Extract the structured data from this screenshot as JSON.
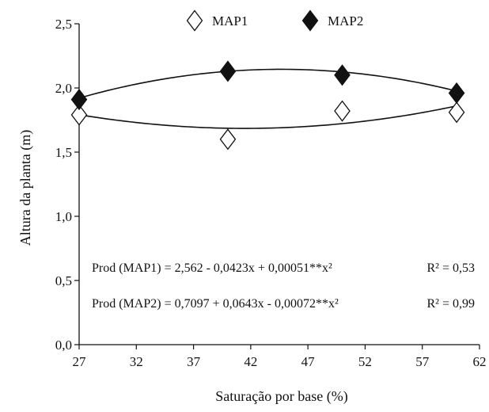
{
  "chart_data": {
    "type": "scatter",
    "xlabel": "Saturação por base (%)",
    "ylabel": "Altura da planta (m)",
    "xlim": [
      27,
      62
    ],
    "ylim": [
      0,
      2.5
    ],
    "x_ticks": [
      27,
      32,
      37,
      42,
      47,
      52,
      57,
      62
    ],
    "x_tick_labels": [
      "27",
      "32",
      "37",
      "42",
      "47",
      "52",
      "57",
      "62"
    ],
    "y_ticks": [
      0,
      0.5,
      1.0,
      1.5,
      2.0,
      2.5
    ],
    "y_tick_labels": [
      "0,0",
      "0,5",
      "1,0",
      "1,5",
      "2,0",
      "2,5"
    ],
    "grid": false,
    "legend_position": "top-center",
    "series": [
      {
        "name": "MAP1",
        "marker": "diamond-open",
        "color": "#111111",
        "x": [
          27,
          40,
          50,
          60
        ],
        "y": [
          1.79,
          1.6,
          1.82,
          1.81
        ],
        "fit": {
          "a": 2.562,
          "b": -0.0423,
          "c": 0.00051
        },
        "equation": "Prod (MAP1) = 2,562 - 0,0423x + 0,00051**x²",
        "r2": "R² = 0,53"
      },
      {
        "name": "MAP2",
        "marker": "diamond-filled",
        "color": "#111111",
        "x": [
          27,
          40,
          50,
          60
        ],
        "y": [
          1.91,
          2.13,
          2.1,
          1.96
        ],
        "fit": {
          "a": 0.7097,
          "b": 0.0643,
          "c": -0.00072
        },
        "equation": "Prod (MAP2) = 0,7097 + 0,0643x - 0,00072**x²",
        "r2": "R² = 0,99"
      }
    ]
  }
}
